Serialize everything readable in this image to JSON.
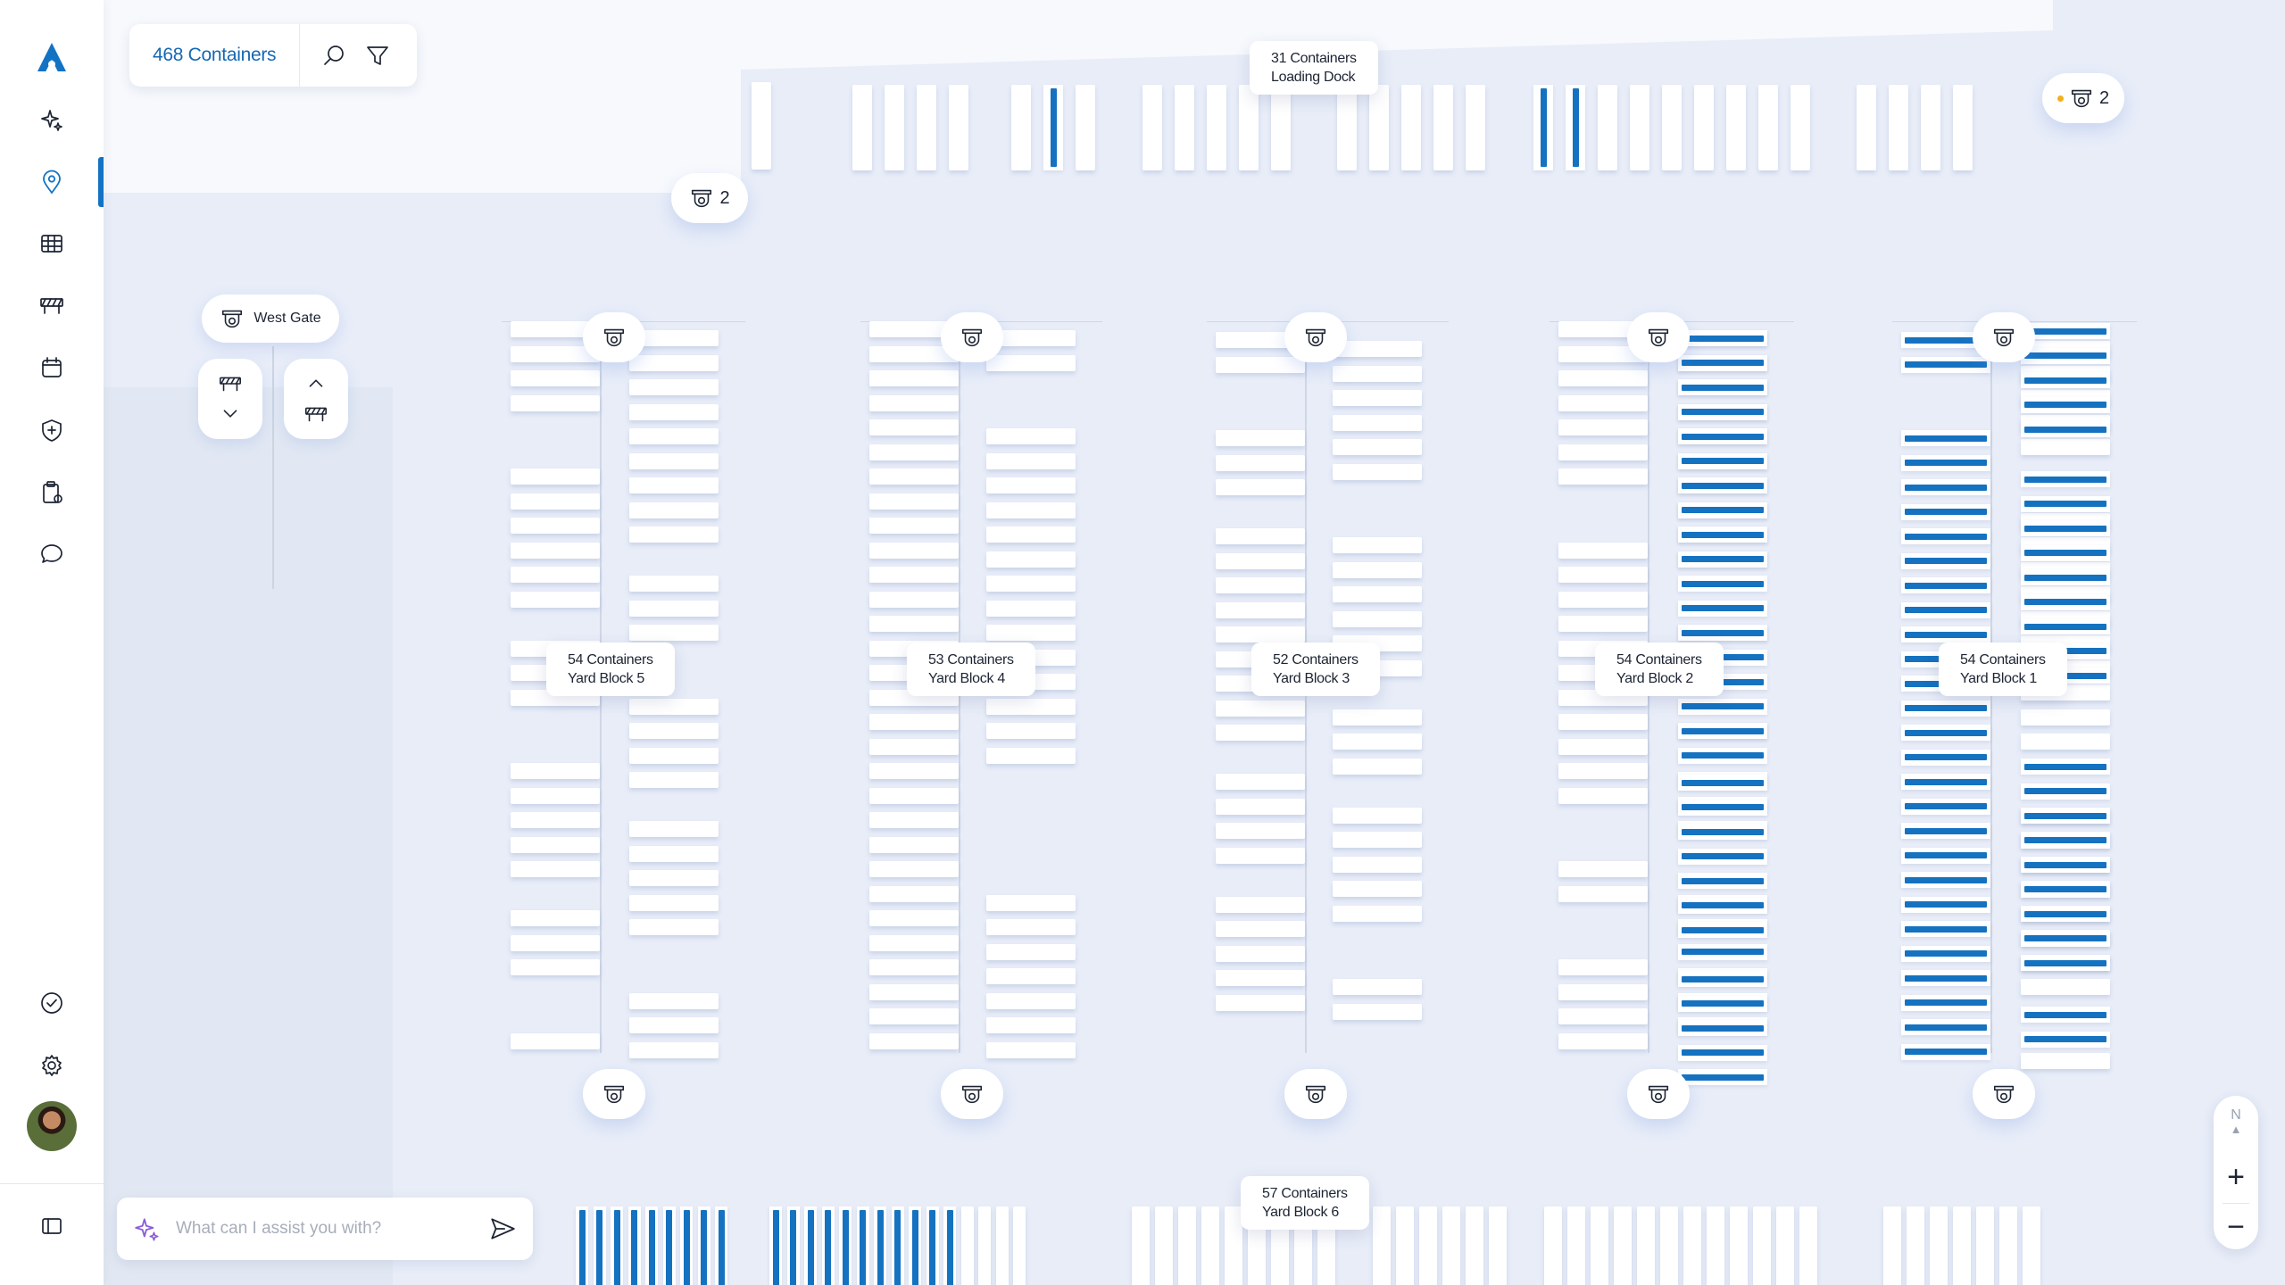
{
  "toolbar": {
    "container_count": "468 Containers"
  },
  "loading_dock": {
    "count": "31 Containers",
    "name": "Loading Dock"
  },
  "yard_blocks": [
    {
      "count": "54 Containers",
      "name": "Yard Block 5"
    },
    {
      "count": "53 Containers",
      "name": "Yard Block 4"
    },
    {
      "count": "52 Containers",
      "name": "Yard Block 3"
    },
    {
      "count": "54 Containers",
      "name": "Yard Block 2"
    },
    {
      "count": "54 Containers",
      "name": "Yard Block 1"
    },
    {
      "count": "57 Containers",
      "name": "Yard Block 6"
    }
  ],
  "cameras": {
    "dock_cluster_count": "2",
    "top_right_cluster_count": "2"
  },
  "gate": {
    "name": "West Gate"
  },
  "assistant": {
    "placeholder": "What can I assist you with?"
  },
  "compass": {
    "label": "N"
  },
  "zoom": {
    "in_label": "+",
    "out_label": "−"
  },
  "colors": {
    "accent": "#1272c4",
    "highlight_container": "#1572c0",
    "background": "#e8edf8"
  },
  "icons": {
    "logo": "logo-icon",
    "nav": [
      "sparkle-icon",
      "location-pin-icon",
      "table-icon",
      "barrier-icon",
      "calendar-icon",
      "shield-plus-icon",
      "clipboard-icon",
      "chat-icon"
    ],
    "bottom": [
      "check-circle-icon",
      "gear-icon",
      "sidebar-toggle-icon"
    ]
  }
}
